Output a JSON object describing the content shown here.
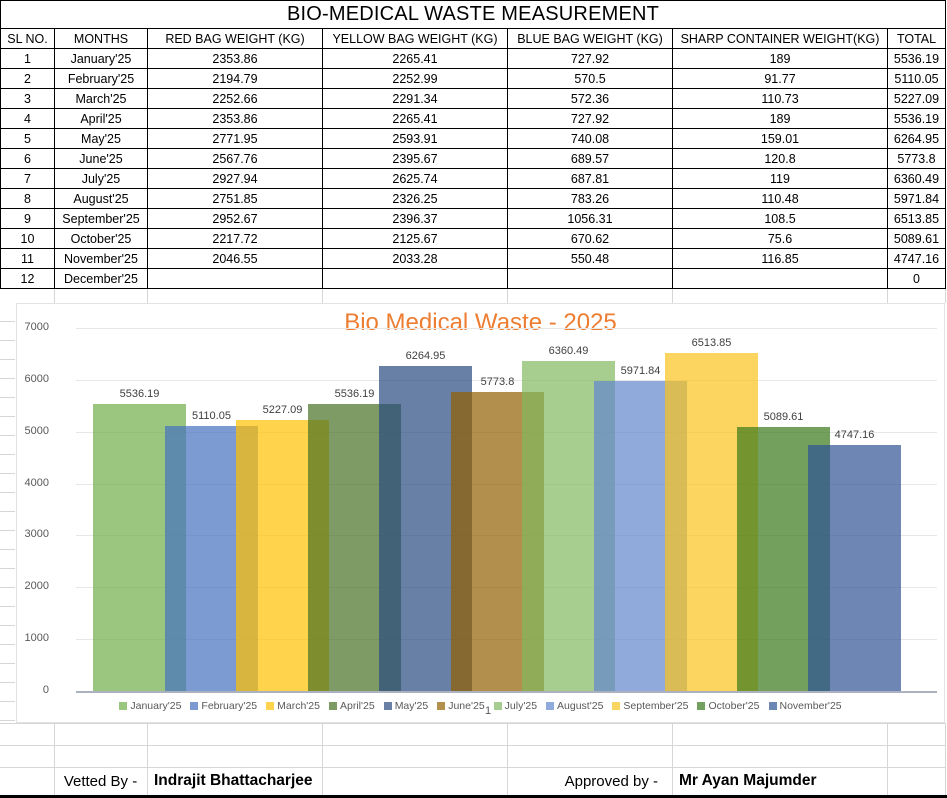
{
  "table": {
    "title": "BIO-MEDICAL WASTE MEASUREMENT",
    "columns": [
      "SL NO.",
      "MONTHS",
      "RED BAG WEIGHT (KG)",
      "YELLOW BAG WEIGHT (KG)",
      "BLUE BAG WEIGHT (KG)",
      "SHARP CONTAINER WEIGHT(KG)",
      "TOTAL"
    ],
    "rows": [
      [
        "1",
        "January'25",
        "2353.86",
        "2265.41",
        "727.92",
        "189",
        "5536.19"
      ],
      [
        "2",
        "February'25",
        "2194.79",
        "2252.99",
        "570.5",
        "91.77",
        "5110.05"
      ],
      [
        "3",
        "March'25",
        "2252.66",
        "2291.34",
        "572.36",
        "110.73",
        "5227.09"
      ],
      [
        "4",
        "April'25",
        "2353.86",
        "2265.41",
        "727.92",
        "189",
        "5536.19"
      ],
      [
        "5",
        "May'25",
        "2771.95",
        "2593.91",
        "740.08",
        "159.01",
        "6264.95"
      ],
      [
        "6",
        "June'25",
        "2567.76",
        "2395.67",
        "689.57",
        "120.8",
        "5773.8"
      ],
      [
        "7",
        "July'25",
        "2927.94",
        "2625.74",
        "687.81",
        "119",
        "6360.49"
      ],
      [
        "8",
        "August'25",
        "2751.85",
        "2326.25",
        "783.26",
        "110.48",
        "5971.84"
      ],
      [
        "9",
        "September'25",
        "2952.67",
        "2396.37",
        "1056.31",
        "108.5",
        "6513.85"
      ],
      [
        "10",
        "October'25",
        "2217.72",
        "2125.67",
        "670.62",
        "75.6",
        "5089.61"
      ],
      [
        "11",
        "November'25",
        "2046.55",
        "2033.28",
        "550.48",
        "116.85",
        "4747.16"
      ],
      [
        "12",
        "December'25",
        "",
        "",
        "",
        "",
        "0"
      ]
    ]
  },
  "chart_data": {
    "type": "bar",
    "title": "Bio Medical Waste - 2025",
    "title_color": "#ED7D31",
    "x_category_label": "1",
    "xlabel": "",
    "ylabel": "",
    "ylim": [
      0,
      7000
    ],
    "yticks": [
      0,
      1000,
      2000,
      3000,
      4000,
      5000,
      6000,
      7000
    ],
    "grid": true,
    "legend_position": "bottom",
    "bar_alpha": 0.7,
    "axis_text_color": "#595959",
    "data_label_color": "#404040",
    "series": [
      {
        "name": "January'25",
        "value": 5536.19,
        "color": "#70AE48"
      },
      {
        "name": "February'25",
        "value": 5110.05,
        "color": "#4570BF"
      },
      {
        "name": "March'25",
        "value": 5227.09,
        "color": "#FFC000"
      },
      {
        "name": "April'25",
        "value": 5536.19,
        "color": "#477024"
      },
      {
        "name": "May'25",
        "value": 6264.95,
        "color": "#2A4A80"
      },
      {
        "name": "June'25",
        "value": 5773.8,
        "color": "#916000"
      },
      {
        "name": "July'25",
        "value": 6360.49,
        "color": "#81B860"
      },
      {
        "name": "August'25",
        "value": 5971.84,
        "color": "#6286CD"
      },
      {
        "name": "September'25",
        "value": 6513.85,
        "color": "#F9C31C"
      },
      {
        "name": "October'25",
        "value": 5089.61,
        "color": "#39771A"
      },
      {
        "name": "November'25",
        "value": 4747.16,
        "color": "#2F5394"
      }
    ]
  },
  "footer": {
    "vetted_label": "Vetted By -",
    "vetted_name": "Indrajit Bhattacharjee",
    "approved_label": "Approved by -",
    "approved_name": "Mr Ayan Majumder"
  }
}
